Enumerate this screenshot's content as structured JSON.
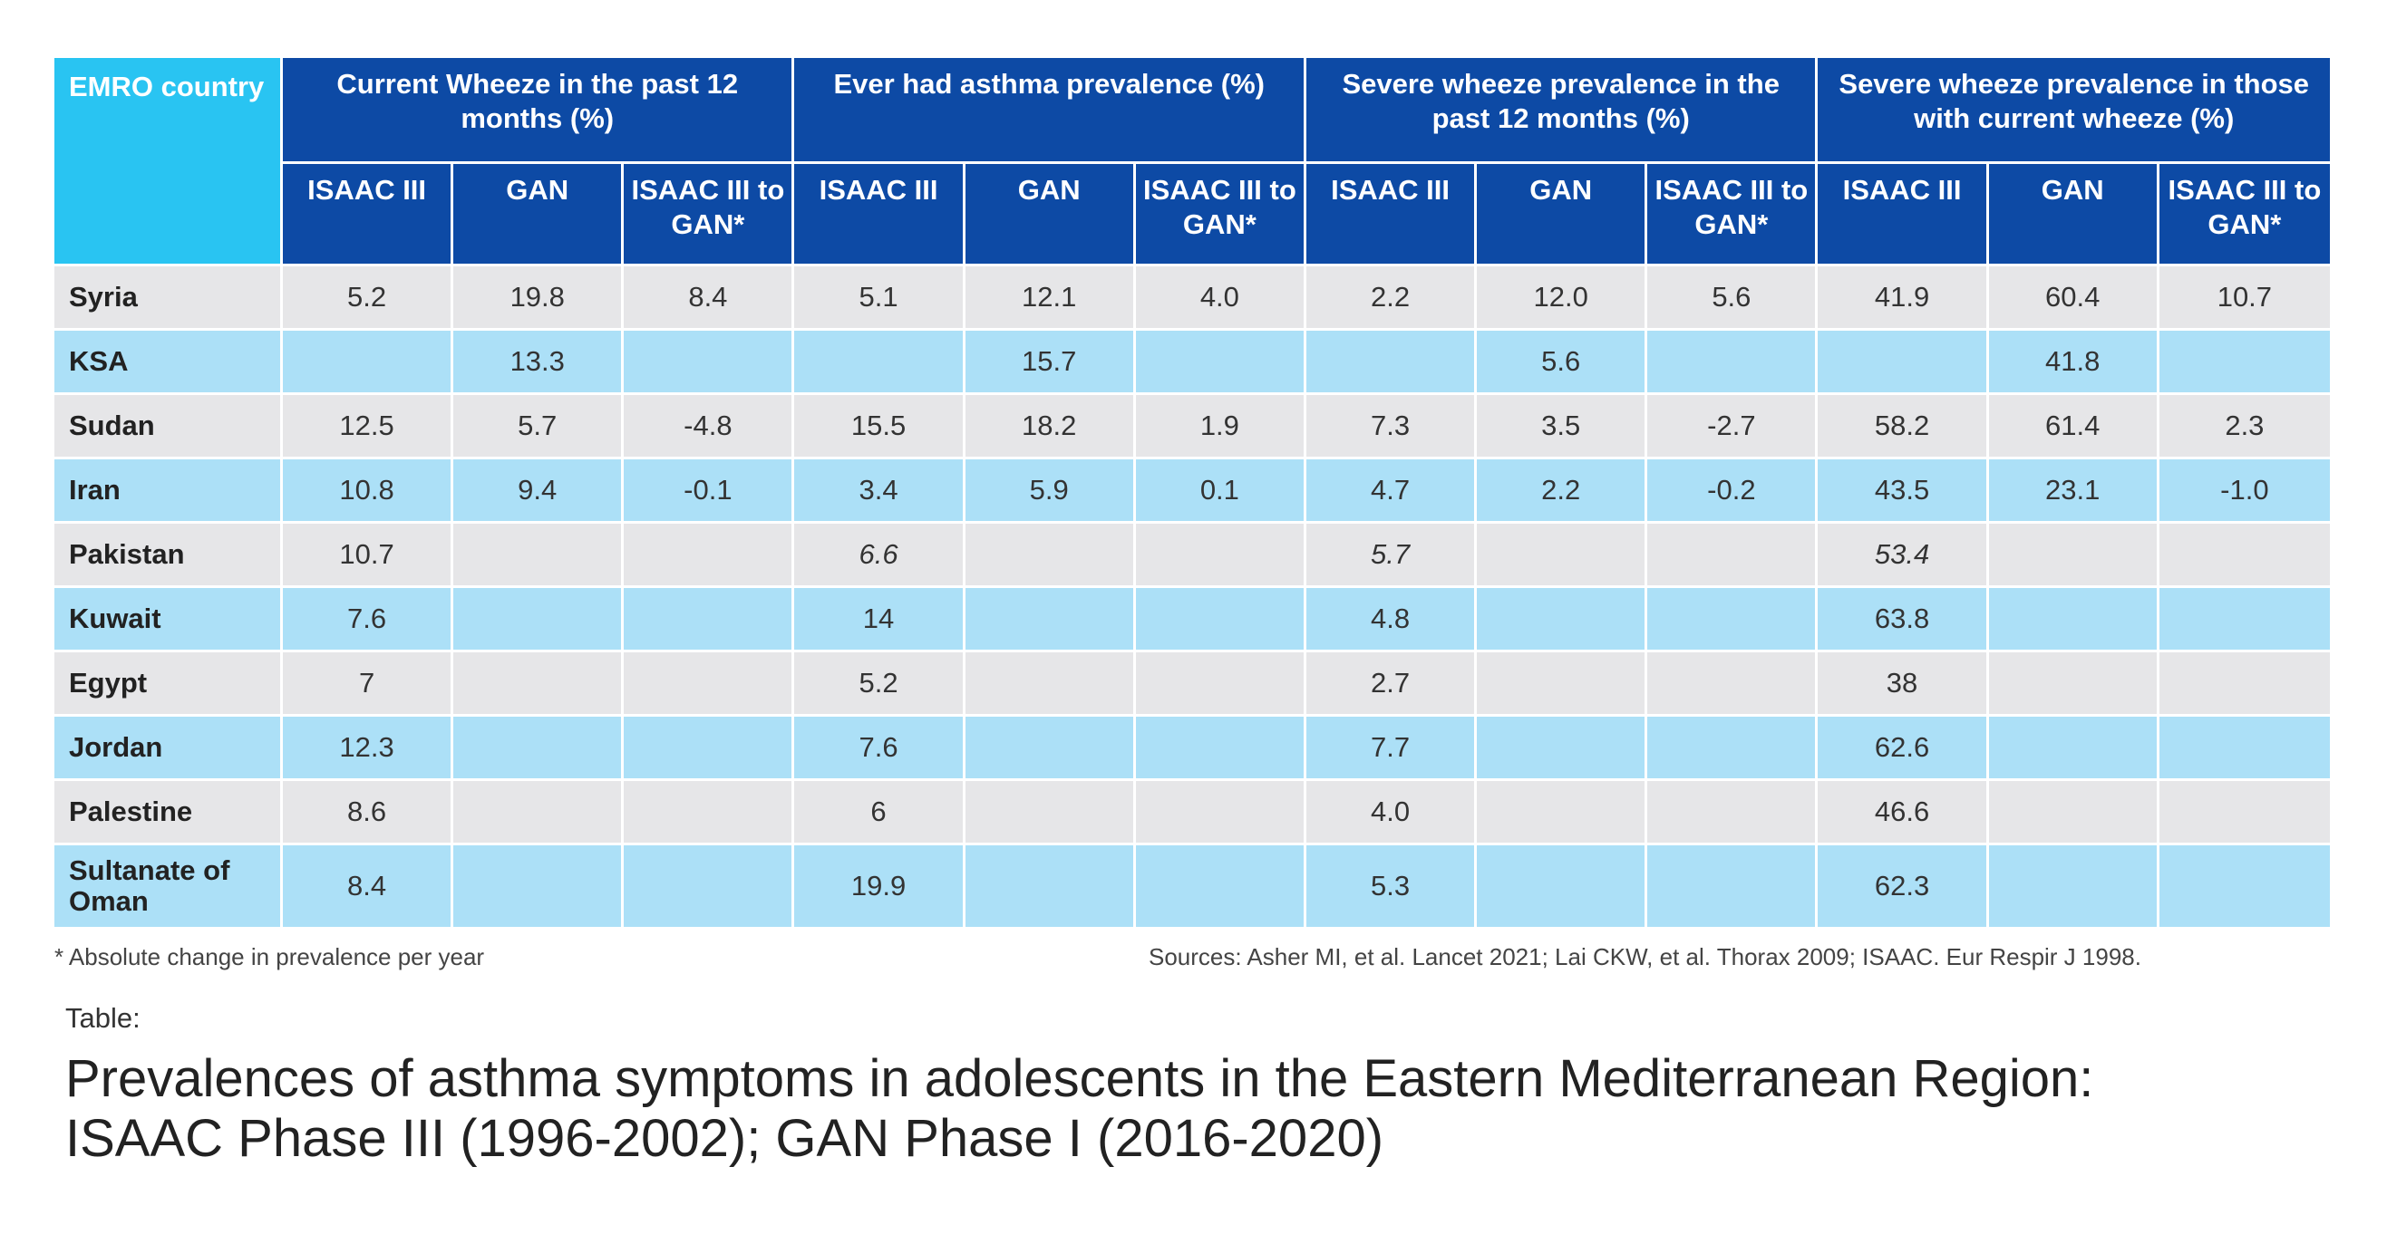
{
  "header": {
    "country_label": "EMRO country",
    "groups": [
      "Current Wheeze in  the past 12 months (%)",
      "Ever had asthma prevalence (%)",
      "Severe wheeze prevalence in the past 12 months (%)",
      "Severe wheeze prevalence in those with current wheeze (%)"
    ],
    "subcolumns": [
      "ISAAC III",
      "GAN",
      "ISAAC III to GAN*"
    ]
  },
  "rows": [
    {
      "country": "Syria",
      "values": [
        "5.2",
        "19.8",
        "8.4",
        "5.1",
        "12.1",
        "4.0",
        "2.2",
        "12.0",
        "5.6",
        "41.9",
        "60.4",
        "10.7"
      ]
    },
    {
      "country": "KSA",
      "values": [
        "",
        "13.3",
        "",
        "",
        "15.7",
        "",
        "",
        "5.6",
        "",
        "",
        "41.8",
        ""
      ]
    },
    {
      "country": "Sudan",
      "values": [
        "12.5",
        "5.7",
        "-4.8",
        "15.5",
        "18.2",
        "1.9",
        "7.3",
        "3.5",
        "-2.7",
        "58.2",
        "61.4",
        "2.3"
      ]
    },
    {
      "country": "Iran",
      "values": [
        "10.8",
        "9.4",
        "-0.1",
        "3.4",
        "5.9",
        "0.1",
        "4.7",
        "2.2",
        "-0.2",
        "43.5",
        "23.1",
        "-1.0"
      ]
    },
    {
      "country": "Pakistan",
      "values": [
        "10.7",
        "",
        "",
        "6.6",
        "",
        "",
        "5.7",
        "",
        "",
        "53.4",
        "",
        ""
      ],
      "italic_cols": [
        3,
        6,
        9
      ]
    },
    {
      "country": "Kuwait",
      "values": [
        "7.6",
        "",
        "",
        "14",
        "",
        "",
        "4.8",
        "",
        "",
        "63.8",
        "",
        ""
      ]
    },
    {
      "country": "Egypt",
      "values": [
        "7",
        "",
        "",
        "5.2",
        "",
        "",
        "2.7",
        "",
        "",
        "38",
        "",
        ""
      ]
    },
    {
      "country": "Jordan",
      "values": [
        "12.3",
        "",
        "",
        "7.6",
        "",
        "",
        "7.7",
        "",
        "",
        "62.6",
        "",
        ""
      ]
    },
    {
      "country": "Palestine",
      "values": [
        "8.6",
        "",
        "",
        "6",
        "",
        "",
        "4.0",
        "",
        "",
        "46.6",
        "",
        ""
      ]
    },
    {
      "country": "Sultanate of Oman",
      "values": [
        "8.4",
        "",
        "",
        "19.9",
        "",
        "",
        "5.3",
        "",
        "",
        "62.3",
        "",
        ""
      ]
    }
  ],
  "footnote": "* Absolute change in prevalence per year",
  "sources": "Sources: Asher MI, et al. Lancet 2021; Lai CKW, et al. Thorax 2009; ISAAC. Eur Respir J 1998.",
  "table_label": "Table:",
  "table_title": "Prevalences of asthma symptoms in adolescents in the Eastern Mediterranean Region: ISAAC Phase III (1996-2002); GAN Phase I (2016-2020)",
  "colors": {
    "header_blue": "#0d4aa5",
    "country_header_cyan": "#29c4f2",
    "row_grey": "#e6e6e8",
    "row_light_blue": "#ace0f7"
  }
}
